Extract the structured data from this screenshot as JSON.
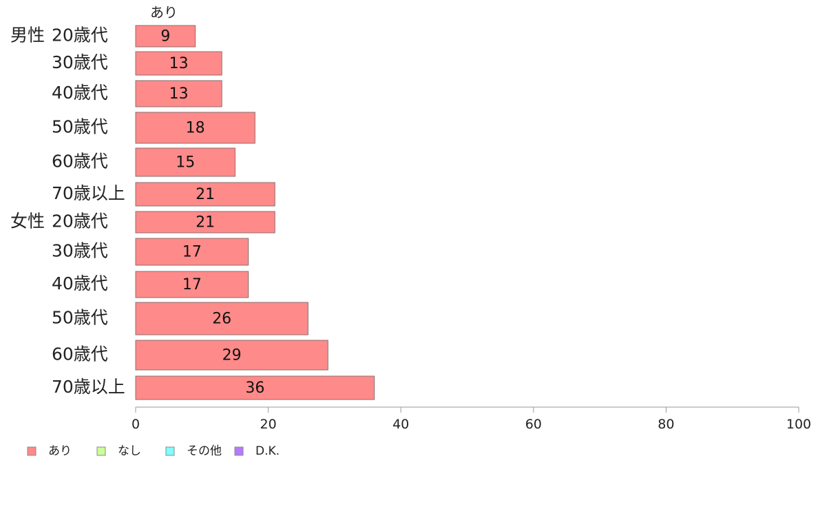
{
  "chart_data": {
    "type": "bar",
    "orientation": "horizontal",
    "stacked": true,
    "header_label": "あり",
    "groups": [
      {
        "label": "男性",
        "categories": [
          "20歳代",
          "30歳代",
          "40歳代",
          "50歳代",
          "60歳代",
          "70歳以上"
        ]
      },
      {
        "label": "女性",
        "categories": [
          "20歳代",
          "30歳代",
          "40歳代",
          "50歳代",
          "60歳代",
          "70歳以上"
        ]
      }
    ],
    "categories": [
      "20歳代",
      "30歳代",
      "40歳代",
      "50歳代",
      "60歳代",
      "70歳以上",
      "20歳代",
      "30歳代",
      "40歳代",
      "50歳代",
      "60歳代",
      "70歳以上"
    ],
    "series": [
      {
        "name": "あり",
        "color": "#ff8a8a",
        "values": [
          9,
          13,
          13,
          18,
          15,
          21,
          21,
          17,
          17,
          26,
          29,
          36
        ]
      },
      {
        "name": "なし",
        "color": "#ccff99",
        "values": [
          null,
          null,
          null,
          null,
          null,
          null,
          null,
          null,
          null,
          null,
          null,
          null
        ]
      },
      {
        "name": "その他",
        "color": "#80ffff",
        "values": [
          null,
          null,
          null,
          null,
          null,
          null,
          null,
          null,
          null,
          null,
          null,
          null
        ]
      },
      {
        "name": "D.K.",
        "color": "#b57aff",
        "values": [
          null,
          null,
          null,
          null,
          null,
          null,
          null,
          null,
          null,
          null,
          null,
          null
        ]
      }
    ],
    "xlim": [
      0,
      100
    ],
    "xticks": [
      0,
      20,
      40,
      60,
      80,
      100
    ],
    "grid": false,
    "legend_position": "bottom-left"
  }
}
